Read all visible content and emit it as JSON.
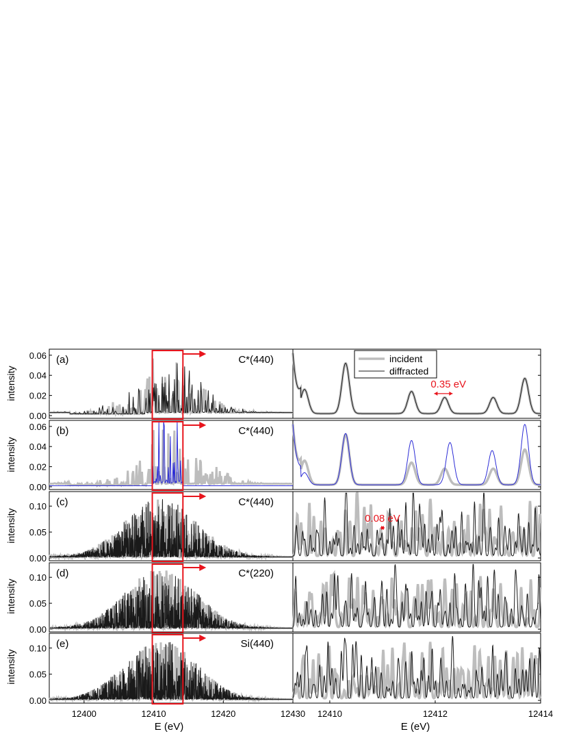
{
  "figure": {
    "x_label_left": "E (eV)",
    "x_label_right": "E (eV)",
    "y_label": "intensity"
  },
  "legend": {
    "entries": [
      {
        "label": "incident",
        "color": "#bdbdbd"
      },
      {
        "label": "diffracted",
        "color": "#1a1a1a"
      }
    ]
  },
  "colors": {
    "incident": "#bdbdbd",
    "diffracted": "#1a1a1a",
    "diffracted_b": "#2b2bd6",
    "highlight": "#e8141c"
  },
  "chart_data": [
    {
      "panel": "a",
      "label": "(a)",
      "crystal": "C*(440)",
      "type": "line",
      "y_ticks": [
        "0.00",
        "0.02",
        "0.04",
        "0.06"
      ],
      "ylim": [
        0,
        0.066
      ],
      "left_xlim": [
        12395,
        12430
      ],
      "right_xlim": [
        12409.3,
        12414
      ],
      "highlight_window": [
        12409.8,
        12414.2
      ],
      "series": [
        {
          "name": "incident",
          "role": "incident"
        },
        {
          "name": "diffracted",
          "role": "diffracted"
        }
      ],
      "right_peaks": [
        [
          12409.52,
          0.024
        ],
        [
          12410.3,
          0.05
        ],
        [
          12411.55,
          0.022
        ],
        [
          12412.18,
          0.016
        ],
        [
          12413.1,
          0.016
        ],
        [
          12413.7,
          0.035
        ]
      ],
      "annotation": {
        "text": "0.35 eV",
        "x": 12412.25,
        "y": 0.028,
        "span": [
          12411.98,
          12412.33
        ]
      }
    },
    {
      "panel": "b",
      "label": "(b)",
      "crystal": "C*(440)",
      "type": "line",
      "y_ticks": [
        "0.00",
        "0.02",
        "0.04",
        "0.06"
      ],
      "ylim": [
        0,
        0.066
      ],
      "left_xlim": [
        12395,
        12430
      ],
      "right_xlim": [
        12409.3,
        12414
      ],
      "highlight_window": [
        12409.8,
        12414.2
      ],
      "series": [
        {
          "name": "incident",
          "role": "incident"
        },
        {
          "name": "diffracted",
          "role": "diffracted_b"
        }
      ],
      "right_peaks_incident": [
        [
          12409.52,
          0.024
        ],
        [
          12410.3,
          0.05
        ],
        [
          12411.55,
          0.022
        ],
        [
          12412.18,
          0.016
        ],
        [
          12413.1,
          0.016
        ],
        [
          12413.7,
          0.035
        ]
      ],
      "right_peaks_diffracted": [
        [
          12409.52,
          0.012
        ],
        [
          12410.3,
          0.051
        ],
        [
          12411.55,
          0.044
        ],
        [
          12412.28,
          0.042
        ],
        [
          12413.08,
          0.034
        ],
        [
          12413.7,
          0.06
        ]
      ]
    },
    {
      "panel": "c",
      "label": "(c)",
      "crystal": "C*(440)",
      "type": "line",
      "y_ticks": [
        "0.00",
        "0.05",
        "0.10"
      ],
      "ylim": [
        0,
        0.128
      ],
      "left_xlim": [
        12395,
        12430
      ],
      "right_xlim": [
        12409.3,
        12414
      ],
      "highlight_window": [
        12409.8,
        12414.2
      ],
      "series": [
        {
          "name": "incident",
          "role": "incident"
        },
        {
          "name": "diffracted",
          "role": "diffracted"
        }
      ],
      "annotation": {
        "text": "0.08 eV",
        "x": 12411.0,
        "y": 0.07,
        "span": [
          12410.96,
          12411.04
        ]
      }
    },
    {
      "panel": "d",
      "label": "(d)",
      "crystal": "C*(220)",
      "type": "line",
      "y_ticks": [
        "0.00",
        "0.05",
        "0.10"
      ],
      "ylim": [
        0,
        0.128
      ],
      "left_xlim": [
        12395,
        12430
      ],
      "right_xlim": [
        12409.3,
        12414
      ],
      "highlight_window": [
        12409.8,
        12414.2
      ],
      "series": [
        {
          "name": "incident",
          "role": "incident"
        },
        {
          "name": "diffracted",
          "role": "diffracted"
        }
      ]
    },
    {
      "panel": "e",
      "label": "(e)",
      "crystal": "Si(440)",
      "type": "line",
      "y_ticks": [
        "0.00",
        "0.05",
        "0.10"
      ],
      "ylim": [
        0,
        0.128
      ],
      "left_xlim": [
        12395,
        12430
      ],
      "right_xlim": [
        12409.3,
        12414
      ],
      "highlight_window": [
        12409.8,
        12414.2
      ],
      "series": [
        {
          "name": "incident",
          "role": "incident"
        },
        {
          "name": "diffracted",
          "role": "diffracted"
        }
      ]
    }
  ],
  "x_ticks_left": [
    "12400",
    "12410",
    "12420",
    "12430"
  ],
  "x_ticks_right": [
    "12410",
    "12412",
    "12414"
  ]
}
